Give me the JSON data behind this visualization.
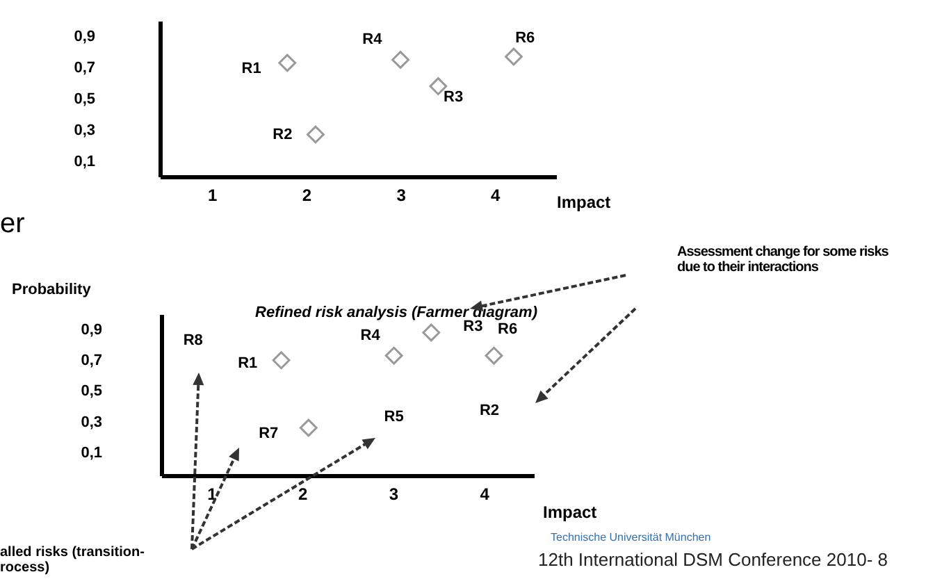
{
  "chart_data": [
    {
      "type": "scatter",
      "xlabel": "Impact",
      "xlim": [
        0.45,
        4.65
      ],
      "ylim": [
        0,
        1.0
      ],
      "xticks": [
        1,
        2,
        3,
        4
      ],
      "yticks": [
        {
          "value": 0.9,
          "label": "0,9"
        },
        {
          "value": 0.7,
          "label": "0,7"
        },
        {
          "value": 0.5,
          "label": "0,5"
        },
        {
          "value": 0.3,
          "label": "0,3"
        },
        {
          "value": 0.1,
          "label": "0,1"
        }
      ],
      "marker": "diamond",
      "series": [
        {
          "color": "#999999",
          "x": [
            1.8,
            2.1,
            3.0,
            3.4,
            4.2
          ],
          "values": [
            0.73,
            0.27,
            0.75,
            0.58,
            0.77
          ]
        }
      ],
      "annotations": [
        "R1",
        "R2",
        "R4",
        "R3",
        "R6"
      ]
    },
    {
      "type": "scatter",
      "title": "Refined risk analysis (Farmer diagram)",
      "xlabel": "Impact",
      "ylabel": "Probability",
      "xlim": [
        0.45,
        4.55
      ],
      "ylim": [
        -0.05,
        1.0
      ],
      "xticks": [
        1,
        2,
        3,
        4
      ],
      "yticks": [
        {
          "value": 0.9,
          "label": "0,9"
        },
        {
          "value": 0.7,
          "label": "0,7"
        },
        {
          "value": 0.5,
          "label": "0,5"
        },
        {
          "value": 0.3,
          "label": "0,3"
        },
        {
          "value": 0.1,
          "label": "0,1"
        }
      ],
      "marker": "diamond",
      "series": [
        {
          "color": "#999999",
          "x": [
            1.77,
            3.01,
            3.42,
            4.11,
            2.07
          ],
          "values": [
            0.7,
            0.73,
            0.88,
            0.73,
            0.26
          ]
        }
      ],
      "annotations": [
        "R8",
        "R1",
        "R4",
        "R3",
        "R6",
        "R5",
        "R2",
        "R7",
        "Assessment change for some risks\ndue to their interactions",
        "er",
        "alled risks (transition-\nrocess)",
        "Technische Universität München",
        "12th International DSM Conference 2010- 8"
      ]
    }
  ]
}
